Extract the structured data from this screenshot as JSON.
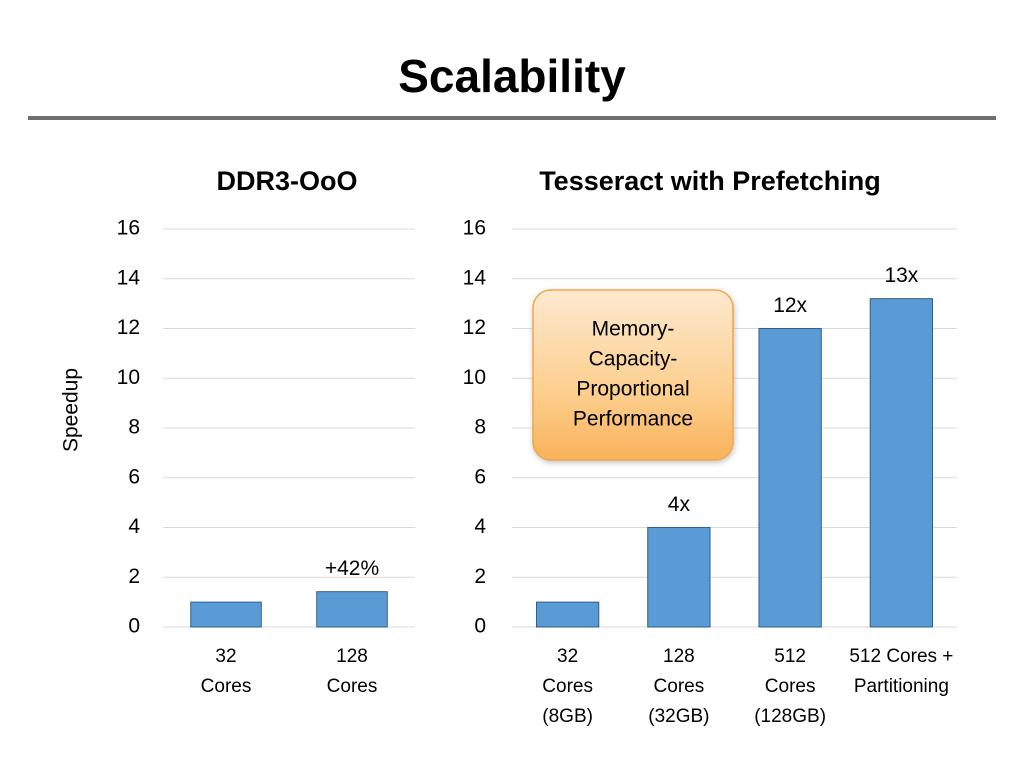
{
  "title": "Scalability",
  "chart_data": [
    {
      "type": "bar",
      "title": "DDR3-OoO",
      "ylabel": "Speedup",
      "categories": [
        [
          "32",
          "Cores"
        ],
        [
          "128",
          "Cores"
        ]
      ],
      "values": [
        1,
        1.42
      ],
      "color": "#5b9bd5",
      "annotations": [
        "+42%"
      ],
      "ylim": [
        0,
        16
      ],
      "yticks": [
        0,
        2,
        4,
        6,
        8,
        10,
        12,
        14,
        16
      ],
      "grid": true
    },
    {
      "type": "bar",
      "title": "Tesseract with Prefetching",
      "categories": [
        [
          "32",
          "Cores",
          "(8GB)"
        ],
        [
          "128",
          "Cores",
          "(32GB)"
        ],
        [
          "512",
          "Cores",
          "(128GB)"
        ],
        [
          "512 Cores +",
          "Partitioning"
        ]
      ],
      "values": [
        1,
        4,
        12,
        13.2
      ],
      "value_labels": [
        null,
        "4x",
        "12x",
        "13x"
      ],
      "color": "#5b9bd5",
      "callout": [
        "Memory-",
        "Capacity-",
        "Proportional",
        "Performance"
      ],
      "ylim": [
        0,
        16
      ],
      "yticks": [
        0,
        2,
        4,
        6,
        8,
        10,
        12,
        14,
        16
      ],
      "grid": true
    }
  ]
}
